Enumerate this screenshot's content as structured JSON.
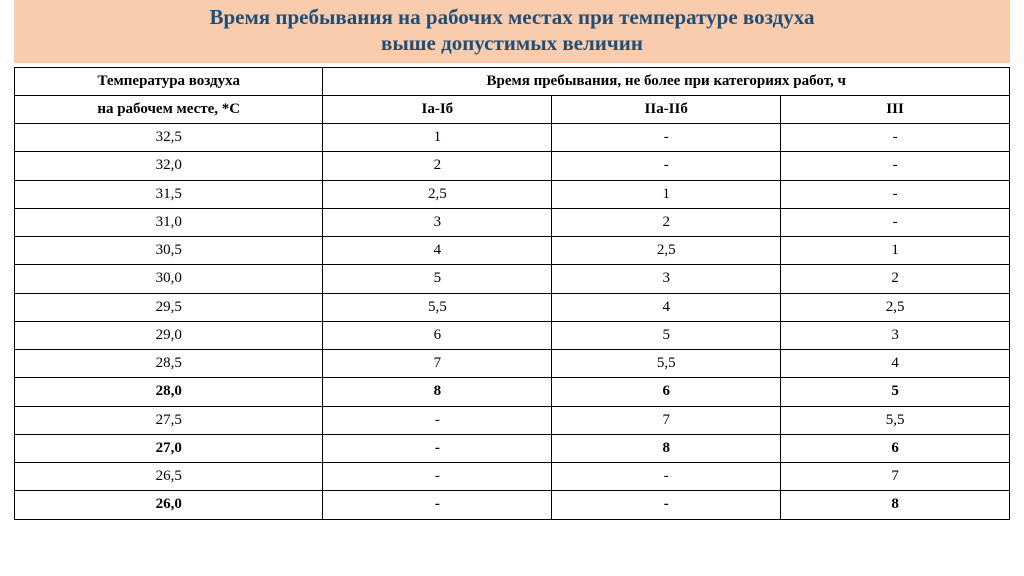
{
  "title": {
    "line1": "Время пребывания на рабочих местах при температуре воздуха",
    "line2": "выше допустимых величин"
  },
  "table": {
    "header": {
      "temp_col": "Температура воздуха",
      "time_group": "Время пребывания, не более при категориях работ, ч",
      "sub_temp": "на рабочем месте, *С",
      "cat1": "Iа-Iб",
      "cat2": "IIа-IIб",
      "cat3": "III"
    },
    "rows": [
      {
        "temp": "32,5",
        "c1": "1",
        "c2": "-",
        "c3": "-",
        "bold": false
      },
      {
        "temp": "32,0",
        "c1": "2",
        "c2": "-",
        "c3": "-",
        "bold": false
      },
      {
        "temp": "31,5",
        "c1": "2,5",
        "c2": "1",
        "c3": "-",
        "bold": false
      },
      {
        "temp": "31,0",
        "c1": "3",
        "c2": "2",
        "c3": "-",
        "bold": false
      },
      {
        "temp": "30,5",
        "c1": "4",
        "c2": "2,5",
        "c3": "1",
        "bold": false
      },
      {
        "temp": "30,0",
        "c1": "5",
        "c2": "3",
        "c3": "2",
        "bold": false
      },
      {
        "temp": "29,5",
        "c1": "5,5",
        "c2": "4",
        "c3": "2,5",
        "bold": false
      },
      {
        "temp": "29,0",
        "c1": "6",
        "c2": "5",
        "c3": "3",
        "bold": false
      },
      {
        "temp": "28,5",
        "c1": "7",
        "c2": "5,5",
        "c3": "4",
        "bold": false
      },
      {
        "temp": "28,0",
        "c1": "8",
        "c2": "6",
        "c3": "5",
        "bold": true
      },
      {
        "temp": "27,5",
        "c1": "-",
        "c2": "7",
        "c3": "5,5",
        "bold": false
      },
      {
        "temp": "27,0",
        "c1": "-",
        "c2": "8",
        "c3": "6",
        "bold": true
      },
      {
        "temp": "26,5",
        "c1": "-",
        "c2": "-",
        "c3": "7",
        "bold": false
      },
      {
        "temp": "26,0",
        "c1": "-",
        "c2": "-",
        "c3": "8",
        "bold": true
      }
    ]
  },
  "colors": {
    "title_bg": "#f8ccac",
    "title_text": "#1f4e79",
    "border": "#000000",
    "background": "#ffffff"
  }
}
